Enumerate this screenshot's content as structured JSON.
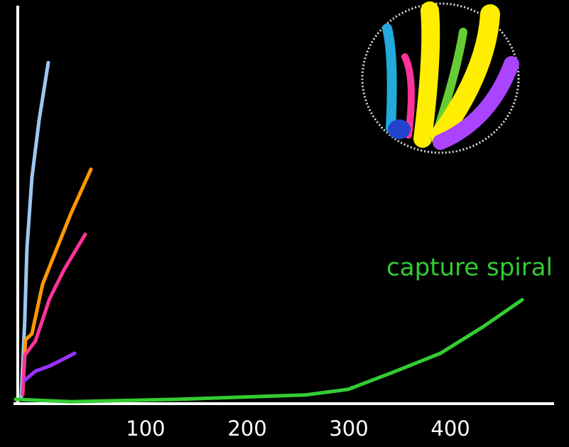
{
  "chart_data": {
    "type": "line",
    "annotation": "capture spiral",
    "xlim": [
      -30,
      502
    ],
    "ylim": [
      0,
      100
    ],
    "xticks": [
      100,
      200,
      300,
      400
    ],
    "series": [
      {
        "color": "#9cc8f0",
        "x": [
          -22.4,
          -18.9,
          -16.8,
          -11.9,
          -4.9,
          4.2
        ],
        "values": [
          1.4,
          21.1,
          39,
          56.9,
          71.3,
          86.0
        ]
      },
      {
        "color": "#ff9900",
        "x": [
          -21,
          -18.2,
          -11.9,
          -1.4,
          12.6,
          26.6,
          46.2
        ],
        "values": [
          2.3,
          16.1,
          17.6,
          30.1,
          39.1,
          48.0,
          59.1
        ]
      },
      {
        "color": "#ff3399",
        "x": [
          -21,
          -18.9,
          -8.4,
          5.6,
          19.6,
          40.6
        ],
        "values": [
          2.3,
          12.2,
          15.8,
          26.5,
          33.7,
          42.7
        ]
      },
      {
        "color": "#9933ff",
        "x": [
          -18.9,
          -8.4,
          5.6,
          19.6,
          30.1
        ],
        "values": [
          5.9,
          8.2,
          9.5,
          11.3,
          12.7
        ]
      },
      {
        "name": "capture spiral",
        "color": "#33cc33",
        "x": [
          -28,
          26.6,
          131.5,
          257.3,
          299.3,
          341.3,
          390.2,
          432.2,
          470.6
        ],
        "values": [
          1.1,
          0.5,
          1.1,
          2.2,
          3.6,
          7.7,
          12.7,
          19.4,
          26.2
        ]
      }
    ]
  }
}
